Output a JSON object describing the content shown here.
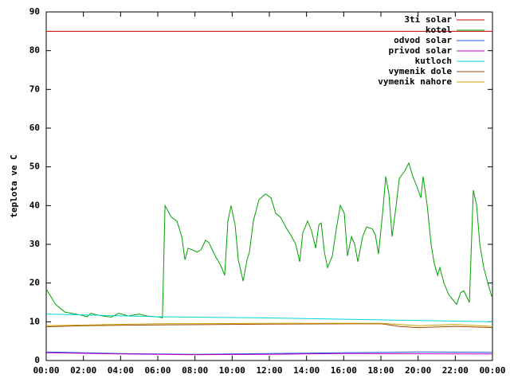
{
  "chart_data": {
    "type": "line",
    "y_label": "teplota ve C",
    "xlim": [
      0,
      24
    ],
    "xticks": [
      {
        "value": 0,
        "label": "00:00"
      },
      {
        "value": 2,
        "label": "02:00"
      },
      {
        "value": 4,
        "label": "04:00"
      },
      {
        "value": 6,
        "label": "06:00"
      },
      {
        "value": 8,
        "label": "08:00"
      },
      {
        "value": 10,
        "label": "10:00"
      },
      {
        "value": 12,
        "label": "12:00"
      },
      {
        "value": 14,
        "label": "14:00"
      },
      {
        "value": 16,
        "label": "16:00"
      },
      {
        "value": 18,
        "label": "18:00"
      },
      {
        "value": 20,
        "label": "20:00"
      },
      {
        "value": 22,
        "label": "22:00"
      },
      {
        "value": 24,
        "label": "00:00"
      }
    ],
    "ylim": [
      0,
      90
    ],
    "yticks": [
      0,
      10,
      20,
      30,
      40,
      50,
      60,
      70,
      80,
      90
    ],
    "grid": false,
    "legend": "top-right",
    "series": [
      {
        "name": "3ti solar",
        "color": "#d00000",
        "x": [
          0,
          24
        ],
        "values": [
          85,
          85
        ]
      },
      {
        "name": "kotel",
        "color": "#00a000",
        "x": [
          0,
          0.5,
          1.0,
          1.8,
          2.2,
          2.4,
          2.9,
          3.5,
          3.9,
          4.4,
          5.0,
          5.4,
          6.1,
          6.25,
          6.39,
          6.73,
          7.03,
          7.29,
          7.46,
          7.63,
          7.89,
          8.1,
          8.31,
          8.57,
          8.74,
          9.09,
          9.39,
          9.6,
          9.77,
          9.94,
          10.16,
          10.33,
          10.59,
          10.8,
          10.93,
          11.14,
          11.44,
          11.79,
          12.09,
          12.34,
          12.6,
          12.94,
          13.2,
          13.42,
          13.63,
          13.8,
          14.06,
          14.27,
          14.49,
          14.66,
          14.79,
          14.96,
          15.13,
          15.39,
          15.6,
          15.82,
          16.03,
          16.2,
          16.42,
          16.59,
          16.76,
          17.02,
          17.23,
          17.53,
          17.7,
          17.87,
          18.09,
          18.26,
          18.43,
          18.6,
          18.82,
          18.99,
          19.29,
          19.5,
          19.72,
          19.93,
          20.15,
          20.27,
          20.49,
          20.7,
          20.87,
          21.05,
          21.17,
          21.39,
          21.65,
          22.07,
          22.29,
          22.46,
          22.76,
          22.97,
          23.15,
          23.32,
          23.53,
          23.75,
          23.96
        ],
        "values": [
          18.5,
          14.5,
          12.5,
          11.8,
          11.3,
          12.2,
          11.6,
          11.2,
          12.2,
          11.5,
          12,
          11.5,
          11.2,
          11,
          40,
          37,
          36,
          32,
          26,
          29,
          28.5,
          28,
          28.5,
          31,
          30.5,
          27,
          24.5,
          22,
          36,
          40,
          35,
          26,
          20.5,
          26,
          28,
          36,
          41.5,
          43,
          42,
          38,
          37,
          34,
          32,
          30,
          25.5,
          33,
          36,
          33.5,
          29,
          35,
          35.5,
          28,
          24,
          27,
          34,
          40,
          38,
          27,
          32,
          30,
          25.5,
          32,
          34.5,
          34,
          32.5,
          27.5,
          38,
          47.5,
          43,
          32,
          40,
          47,
          49,
          51,
          47.5,
          45,
          42,
          47.5,
          40,
          30,
          25,
          22,
          24,
          20,
          17,
          14.5,
          17.5,
          18,
          15,
          44,
          40,
          30,
          24,
          20,
          16.5
        ]
      },
      {
        "name": "odvod solar",
        "color": "#2050e0",
        "x": [
          0,
          4,
          8,
          12,
          16,
          20,
          24
        ],
        "values": [
          2.2,
          1.8,
          1.6,
          1.8,
          2.0,
          2.2,
          2.1
        ]
      },
      {
        "name": "privod solar",
        "color": "#c000c0",
        "x": [
          0,
          4,
          8,
          12,
          16,
          24
        ],
        "values": [
          2,
          1.7,
          1.5,
          1.6,
          1.8,
          1.7
        ]
      },
      {
        "name": "kutloch",
        "color": "#00d8d8",
        "x": [
          0,
          6,
          12,
          18,
          24
        ],
        "values": [
          12,
          11.3,
          11,
          10.5,
          10
        ]
      },
      {
        "name": "vymenik dole",
        "color": "#a04a00",
        "x": [
          0,
          2,
          6,
          12,
          18,
          19,
          20,
          22,
          24
        ],
        "values": [
          8.7,
          9,
          9.2,
          9.4,
          9.5,
          8.8,
          8.5,
          8.8,
          8.5
        ]
      },
      {
        "name": "vymenik nahore",
        "color": "#c8a000",
        "x": [
          0,
          6,
          12,
          18,
          20,
          22,
          24
        ],
        "values": [
          9,
          9.5,
          9.6,
          9.6,
          9,
          9.3,
          8.8
        ]
      }
    ]
  }
}
